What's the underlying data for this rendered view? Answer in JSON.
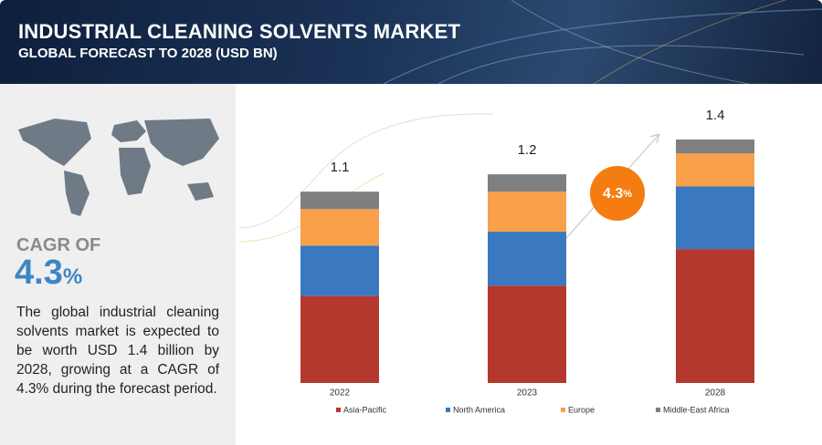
{
  "header": {
    "title": "INDUSTRIAL CLEANING SOLVENTS MARKET",
    "subtitle": "GLOBAL FORECAST TO 2028 (USD BN)"
  },
  "summary": {
    "cagr_label": "CAGR OF",
    "cagr_number": "4.3",
    "cagr_unit": "%",
    "text": "The global industrial cleaning solvents market is expected to be worth USD 1.4 billion by 2028, growing at a CAGR of 4.3% during the forecast period."
  },
  "chart_data": {
    "type": "stacked_bar",
    "categories": [
      "2022",
      "2023",
      "2028"
    ],
    "totals": [
      1.1,
      1.2,
      1.4
    ],
    "annotation": {
      "number": "4.3",
      "unit": "%"
    },
    "series": [
      {
        "name": "Asia-Pacific",
        "color": "#b5382f",
        "values": [
          0.5,
          0.56,
          0.77
        ]
      },
      {
        "name": "North America",
        "color": "#3a78bf",
        "values": [
          0.29,
          0.31,
          0.36
        ]
      },
      {
        "name": "Europe",
        "color": "#f8a04a",
        "values": [
          0.21,
          0.23,
          0.19
        ]
      },
      {
        "name": "Middle-East Africa",
        "color": "#7f7f7f",
        "values": [
          0.1,
          0.1,
          0.08
        ]
      }
    ]
  }
}
